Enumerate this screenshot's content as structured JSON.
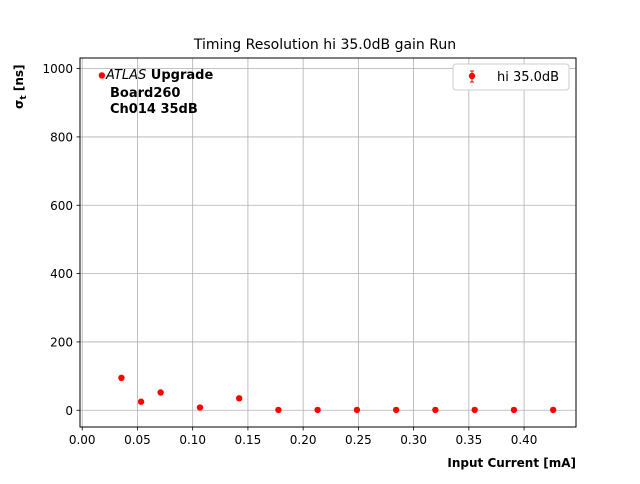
{
  "chart_data": {
    "type": "scatter",
    "title": "Timing Resolution hi 35.0dB gain Run",
    "xlabel": "Input Current [mA]",
    "ylabel": "σ",
    "ylabel_sub": "t",
    "ylabel_unit": " [ns]",
    "xlim": [
      -0.002,
      0.447
    ],
    "ylim": [
      -49,
      1031
    ],
    "xticks": [
      0.0,
      0.05,
      0.1,
      0.15,
      0.2,
      0.25,
      0.3,
      0.35,
      0.4
    ],
    "xtick_labels": [
      "0.00",
      "0.05",
      "0.10",
      "0.15",
      "0.20",
      "0.25",
      "0.30",
      "0.35",
      "0.40"
    ],
    "yticks": [
      0,
      200,
      400,
      600,
      800,
      1000
    ],
    "ytick_labels": [
      "0",
      "200",
      "400",
      "600",
      "800",
      "1000"
    ],
    "grid": true,
    "legend_position": "top-right",
    "series": [
      {
        "name": "hi 35.0dB",
        "color": "#ff0000",
        "x": [
          0.0178,
          0.0355,
          0.0533,
          0.071,
          0.1066,
          0.1421,
          0.1776,
          0.2131,
          0.2487,
          0.2842,
          0.3197,
          0.3553,
          0.3908,
          0.4263
        ],
        "y": [
          980,
          95,
          25,
          52,
          8,
          35,
          1,
          1,
          1,
          1,
          1,
          1,
          1,
          1
        ]
      }
    ],
    "annotation": {
      "atlas": "ATLAS",
      "upgrade": " Upgrade",
      "line2": "Board260",
      "line3": "Ch014 35dB"
    }
  }
}
